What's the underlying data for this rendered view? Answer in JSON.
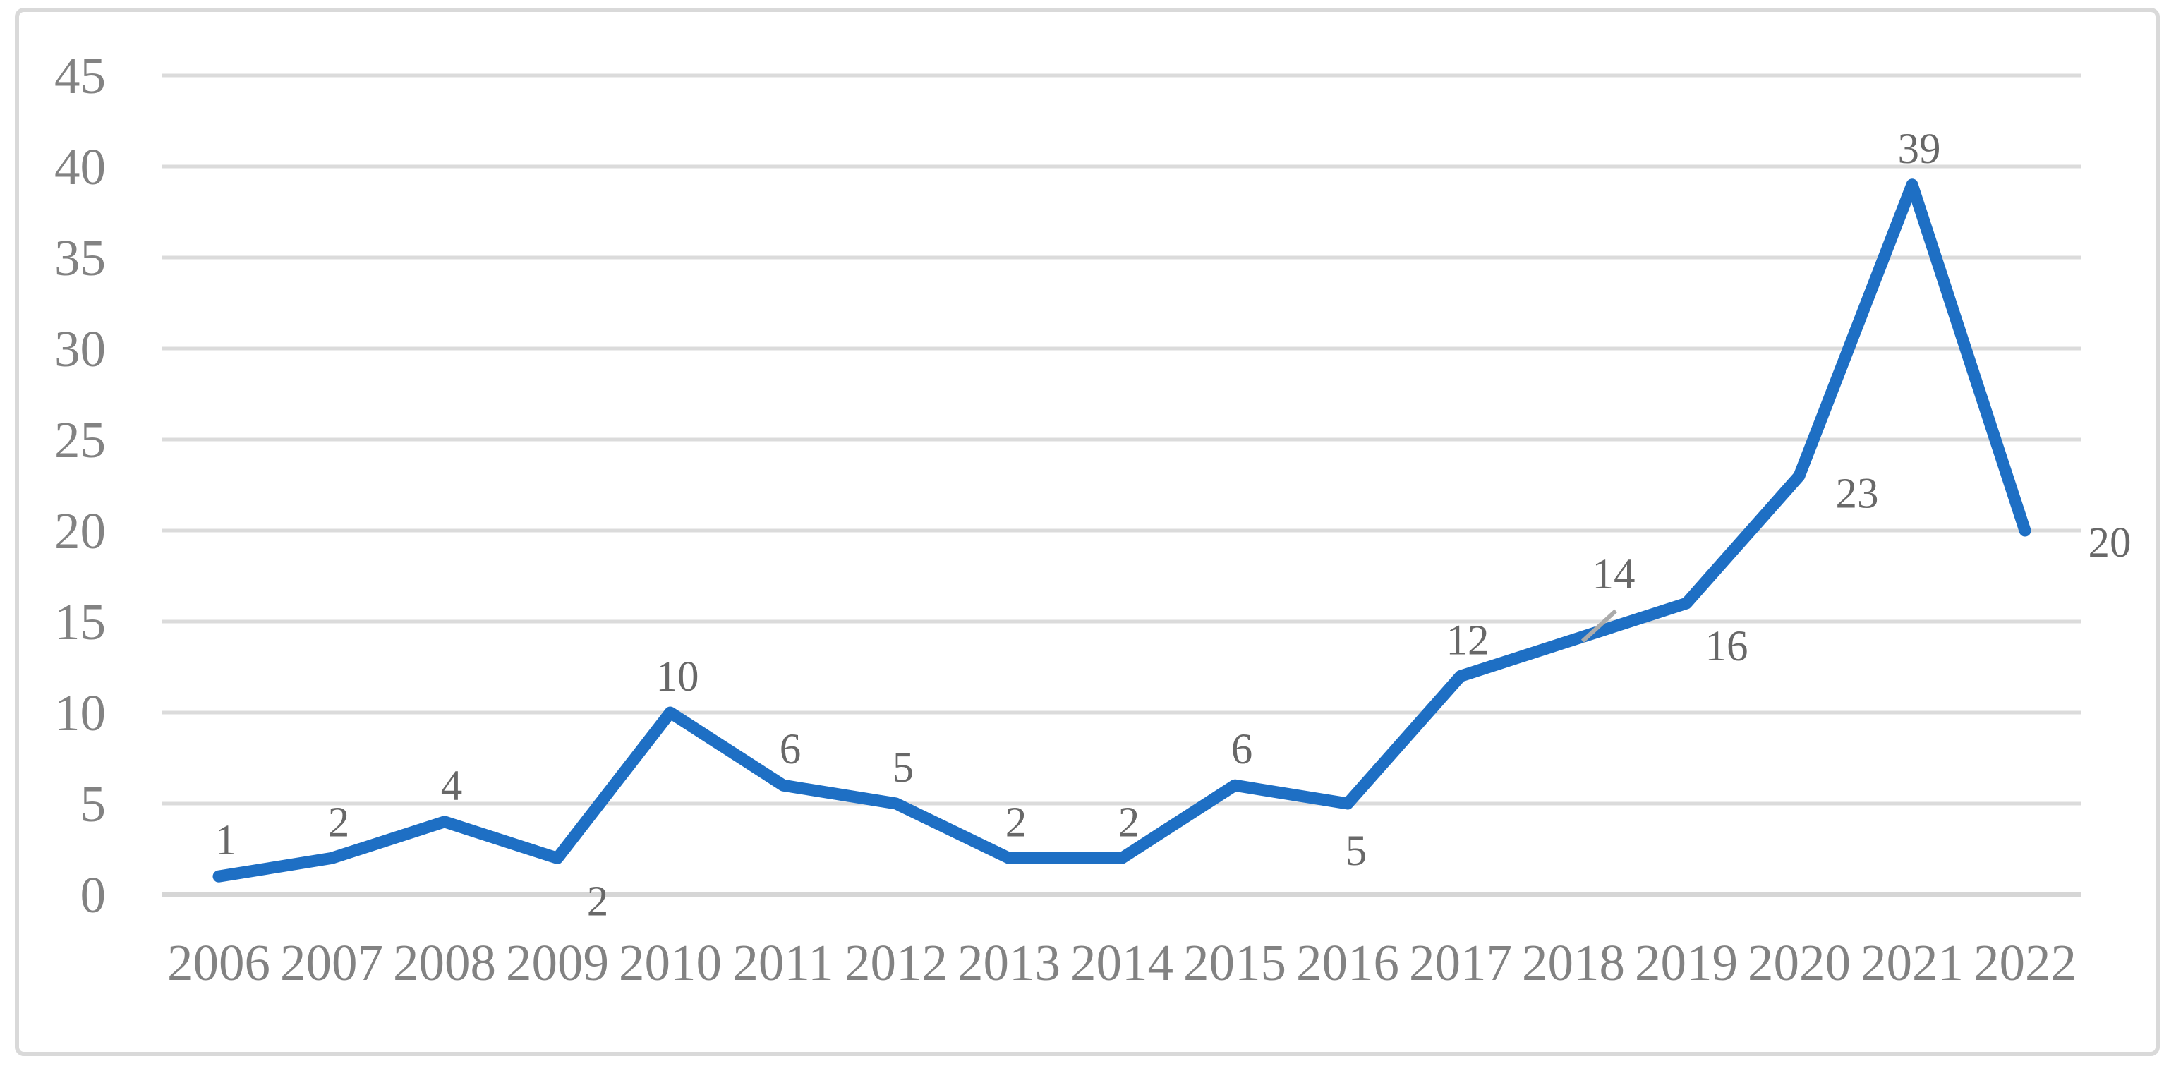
{
  "chart_data": {
    "type": "line",
    "title": "",
    "xlabel": "",
    "ylabel": "",
    "categories": [
      "2006",
      "2007",
      "2008",
      "2009",
      "2010",
      "2011",
      "2012",
      "2013",
      "2014",
      "2015",
      "2016",
      "2017",
      "2018",
      "2019",
      "2020",
      "2021",
      "2022"
    ],
    "values": [
      1,
      2,
      4,
      2,
      10,
      6,
      5,
      2,
      2,
      6,
      5,
      12,
      14,
      16,
      23,
      39,
      20
    ],
    "ylim": [
      0,
      45
    ],
    "y_ticks": [
      0,
      5,
      10,
      15,
      20,
      25,
      30,
      35,
      40,
      45
    ],
    "grid": "horizontal",
    "legend": "none",
    "data_labels": true,
    "label_placements": [
      "above",
      "above",
      "above",
      "below-right",
      "above",
      "above",
      "above",
      "above",
      "above",
      "above",
      "below",
      "above",
      "leader-above-right",
      "below-right",
      "right-below",
      "above",
      "right"
    ],
    "style": {
      "line_color": "#1E6FC4",
      "gridline_color": "#DBDBDB",
      "axis_line_color": "#D6D6D6",
      "tick_label_color": "#828282",
      "data_label_color": "#686868",
      "leader_line_color": "#ABABAB",
      "frame_color": "#D9D9D9",
      "background_color": "#FFFFFF"
    }
  }
}
